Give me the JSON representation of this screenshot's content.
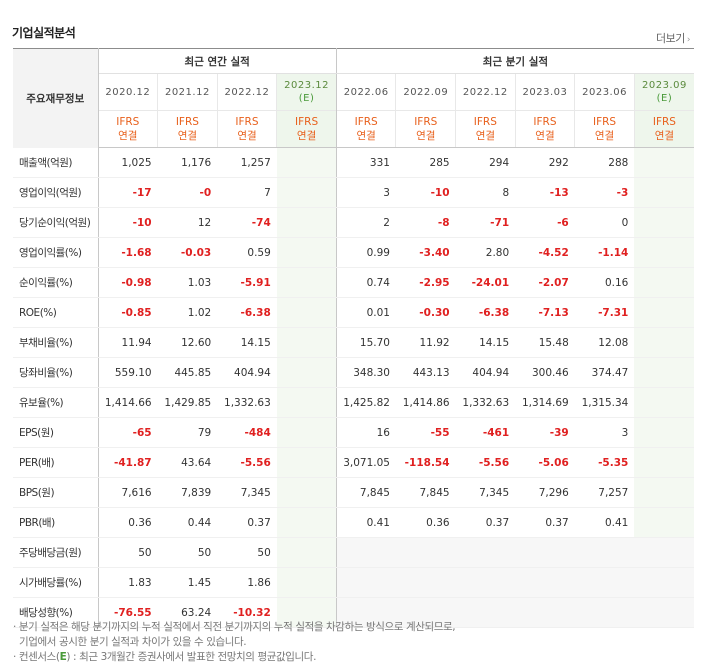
{
  "section_title": "기업실적분석",
  "more_label": "더보기",
  "table": {
    "label_header": "주요재무정보",
    "group_annual": "최근 연간 실적",
    "group_quarterly": "최근 분기 실적",
    "annual_periods": [
      {
        "date": "2020.12",
        "sub": "",
        "est": false
      },
      {
        "date": "2021.12",
        "sub": "",
        "est": false
      },
      {
        "date": "2022.12",
        "sub": "",
        "est": false
      },
      {
        "date": "2023.12",
        "sub": "(E)",
        "est": true
      }
    ],
    "quarterly_periods": [
      {
        "date": "2022.06",
        "sub": "",
        "est": false
      },
      {
        "date": "2022.09",
        "sub": "",
        "est": false
      },
      {
        "date": "2022.12",
        "sub": "",
        "est": false
      },
      {
        "date": "2023.03",
        "sub": "",
        "est": false
      },
      {
        "date": "2023.06",
        "sub": "",
        "est": false
      },
      {
        "date": "2023.09",
        "sub": "(E)",
        "est": true
      }
    ],
    "ifrs_line1": "IFRS",
    "ifrs_line2": "연결",
    "groups": [
      [
        {
          "label": "매출액(억원)",
          "annual": [
            "1,025",
            "1,176",
            "1,257",
            ""
          ],
          "quarterly": [
            "331",
            "285",
            "294",
            "292",
            "288",
            ""
          ]
        },
        {
          "label": "영업이익(억원)",
          "annual": [
            "-17",
            "-0",
            "7",
            ""
          ],
          "quarterly": [
            "3",
            "-10",
            "8",
            "-13",
            "-3",
            ""
          ]
        },
        {
          "label": "당기순이익(억원)",
          "annual": [
            "-10",
            "12",
            "-74",
            ""
          ],
          "quarterly": [
            "2",
            "-8",
            "-71",
            "-6",
            "0",
            ""
          ]
        }
      ],
      [
        {
          "label": "영업이익률(%)",
          "annual": [
            "-1.68",
            "-0.03",
            "0.59",
            ""
          ],
          "quarterly": [
            "0.99",
            "-3.40",
            "2.80",
            "-4.52",
            "-1.14",
            ""
          ]
        },
        {
          "label": "순이익률(%)",
          "annual": [
            "-0.98",
            "1.03",
            "-5.91",
            ""
          ],
          "quarterly": [
            "0.74",
            "-2.95",
            "-24.01",
            "-2.07",
            "0.16",
            ""
          ]
        },
        {
          "label": "ROE(%)",
          "annual": [
            "-0.85",
            "1.02",
            "-6.38",
            ""
          ],
          "quarterly": [
            "0.01",
            "-0.30",
            "-6.38",
            "-7.13",
            "-7.31",
            ""
          ]
        }
      ],
      [
        {
          "label": "부채비율(%)",
          "annual": [
            "11.94",
            "12.60",
            "14.15",
            ""
          ],
          "quarterly": [
            "15.70",
            "11.92",
            "14.15",
            "15.48",
            "12.08",
            ""
          ]
        },
        {
          "label": "당좌비율(%)",
          "annual": [
            "559.10",
            "445.85",
            "404.94",
            ""
          ],
          "quarterly": [
            "348.30",
            "443.13",
            "404.94",
            "300.46",
            "374.47",
            ""
          ]
        },
        {
          "label": "유보율(%)",
          "annual": [
            "1,414.66",
            "1,429.85",
            "1,332.63",
            ""
          ],
          "quarterly": [
            "1,425.82",
            "1,414.86",
            "1,332.63",
            "1,314.69",
            "1,315.34",
            ""
          ]
        }
      ],
      [
        {
          "label": "EPS(원)",
          "annual": [
            "-65",
            "79",
            "-484",
            ""
          ],
          "quarterly": [
            "16",
            "-55",
            "-461",
            "-39",
            "3",
            ""
          ]
        },
        {
          "label": "PER(배)",
          "annual": [
            "-41.87",
            "43.64",
            "-5.56",
            ""
          ],
          "quarterly": [
            "3,071.05",
            "-118.54",
            "-5.56",
            "-5.06",
            "-5.35",
            ""
          ]
        },
        {
          "label": "BPS(원)",
          "annual": [
            "7,616",
            "7,839",
            "7,345",
            ""
          ],
          "quarterly": [
            "7,845",
            "7,845",
            "7,345",
            "7,296",
            "7,257",
            ""
          ]
        },
        {
          "label": "PBR(배)",
          "annual": [
            "0.36",
            "0.44",
            "0.37",
            ""
          ],
          "quarterly": [
            "0.41",
            "0.36",
            "0.37",
            "0.37",
            "0.41",
            ""
          ]
        }
      ],
      [
        {
          "label": "주당배당금(원)",
          "annual": [
            "50",
            "50",
            "50",
            ""
          ],
          "quarterly": [
            "",
            "",
            "",
            "",
            "",
            ""
          ],
          "quarterly_blank": true
        },
        {
          "label": "시가배당률(%)",
          "annual": [
            "1.83",
            "1.45",
            "1.86",
            ""
          ],
          "quarterly": [
            "",
            "",
            "",
            "",
            "",
            ""
          ],
          "quarterly_blank": true
        },
        {
          "label": "배당성향(%)",
          "annual": [
            "-76.55",
            "63.24",
            "-10.32",
            ""
          ],
          "quarterly": [
            "",
            "",
            "",
            "",
            "",
            ""
          ],
          "quarterly_blank": true
        }
      ]
    ]
  },
  "notes": {
    "line1": "· 분기 실적은 해당 분기까지의 누적 실적에서 직전 분기까지의 누적 실적을 차감하는 방식으로 계산되므로,",
    "line2": "  기업에서 공시한 분기 실적과 차이가 있을 수 있습니다.",
    "line3_pre": "· 컨센서스(",
    "line3_e": "E",
    "line3_post": ") : 최근 3개월간 증권사에서 발표한 전망치의 평균값입니다."
  },
  "colors": {
    "negative": "#e02020",
    "ifrs": "#e8601c",
    "estimate_bg": "#f4f9f2",
    "estimate_text": "#4a9a3a"
  }
}
